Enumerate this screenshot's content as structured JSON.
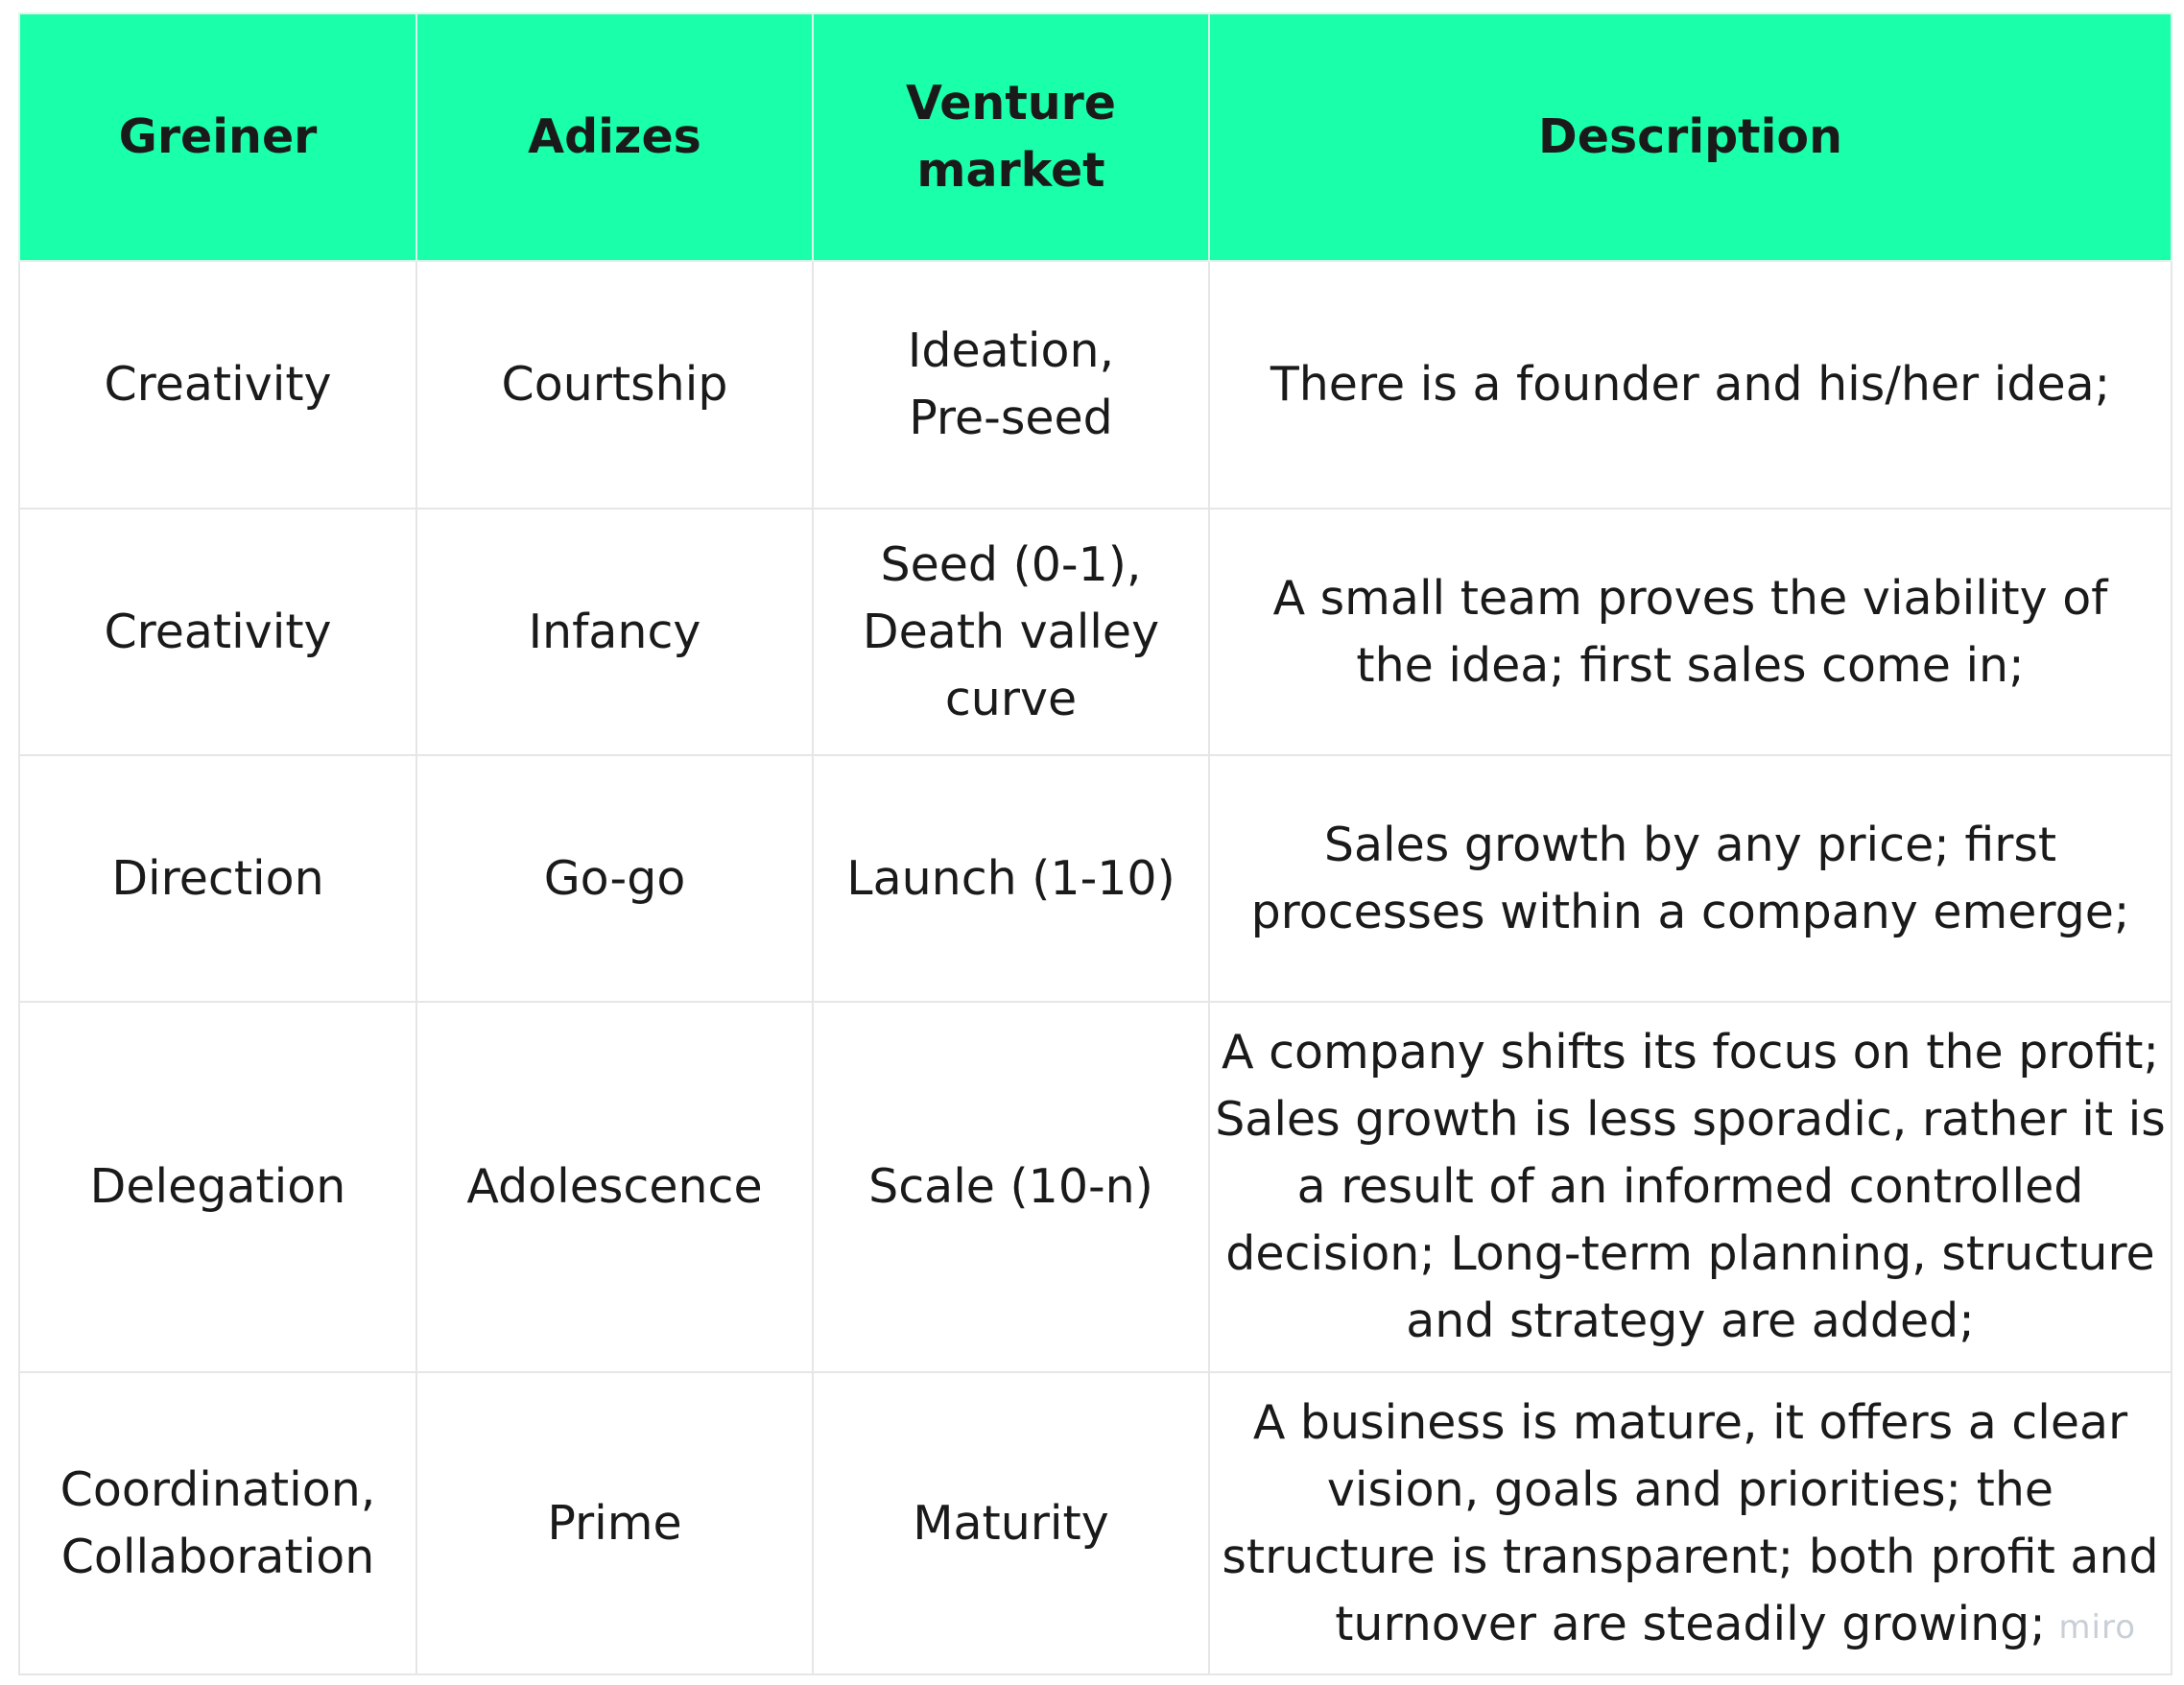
{
  "table": {
    "headers": [
      "Greiner",
      "Adizes",
      "Venture market",
      "Description"
    ],
    "rows": [
      [
        "Creativity",
        "Courtship",
        "Ideation, Pre-seed",
        "There is a founder and his/her idea;"
      ],
      [
        "Creativity",
        "Infancy",
        "Seed (0-1), Death valley curve",
        "A small team proves the viability of the idea; first sales come in;"
      ],
      [
        "Direction",
        "Go-go",
        "Launch (1-10)",
        "Sales growth by any price; first processes within a company emerge;"
      ],
      [
        "Delegation",
        "Adolescence",
        "Scale (10-n)",
        "A company shifts its focus on the profit; Sales growth is less sporadic, rather it is a result of an informed controlled decision;  Long-term planning, structure and strategy are added;"
      ],
      [
        "Coordination, Collaboration",
        "Prime",
        "Maturity",
        "A business is mature, it offers a clear vision, goals and priorities; the structure is transparent; both profit and turnover are steadily growing;"
      ]
    ]
  },
  "colors": {
    "header_bg": "#19ffaa",
    "border": "#e6e6e6",
    "watermark": "#c9cfd6"
  },
  "watermark": "miro"
}
